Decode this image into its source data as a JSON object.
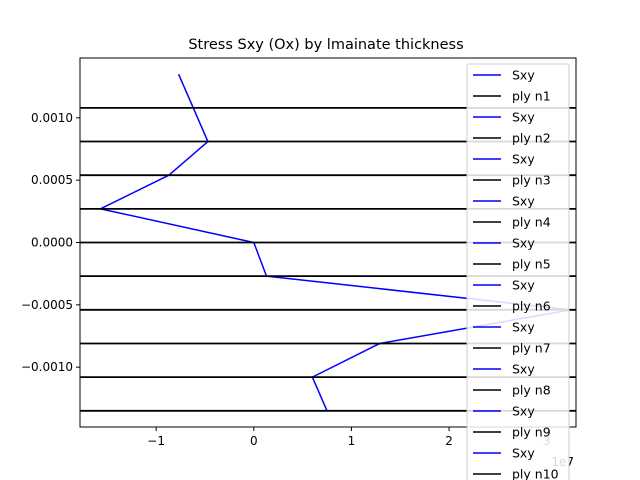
{
  "chart_data": {
    "type": "line",
    "title": "Stress Sxy (Ox) by lmainate thickness",
    "xlabel": "",
    "ylabel": "",
    "x_offset_text": "1e7",
    "x_ticks": [
      -1,
      0,
      1,
      2,
      3
    ],
    "x_tick_labels": [
      "−1",
      "0",
      "1",
      "2",
      "3"
    ],
    "y_ticks": [
      0.001,
      0.0005,
      0.0,
      -0.0005,
      -0.001
    ],
    "y_tick_labels": [
      "0.0010",
      "0.0005",
      "0.0000",
      "−0.0005",
      "−0.0010"
    ],
    "xlim": [
      -1.78,
      3.3
    ],
    "ylim": [
      -0.00148,
      0.00148
    ],
    "grid": false,
    "legend_position": "right",
    "series": [
      {
        "name": "Sxy",
        "color": "#0000ff",
        "x": [
          -0.77,
          -0.47
        ],
        "y": [
          0.00135,
          0.00081
        ]
      },
      {
        "name": "ply n1",
        "color": "#000000",
        "x": [
          -1.78,
          3.3
        ],
        "y": [
          0.00108,
          0.00108
        ]
      },
      {
        "name": "Sxy",
        "color": "#0000ff",
        "x": [
          -0.47,
          -0.87
        ],
        "y": [
          0.00081,
          0.00054
        ]
      },
      {
        "name": "ply n2",
        "color": "#000000",
        "x": [
          -1.78,
          3.3
        ],
        "y": [
          0.00081,
          0.00081
        ]
      },
      {
        "name": "Sxy",
        "color": "#0000ff",
        "x": [
          -0.87,
          -1.57
        ],
        "y": [
          0.00054,
          0.00027
        ]
      },
      {
        "name": "ply n3",
        "color": "#000000",
        "x": [
          -1.78,
          3.3
        ],
        "y": [
          0.00054,
          0.00054
        ]
      },
      {
        "name": "Sxy",
        "color": "#0000ff",
        "x": [
          -1.57,
          0.0
        ],
        "y": [
          0.00027,
          0.0
        ]
      },
      {
        "name": "ply n4",
        "color": "#000000",
        "x": [
          -1.78,
          3.3
        ],
        "y": [
          0.00027,
          0.00027
        ]
      },
      {
        "name": "Sxy",
        "color": "#0000ff",
        "x": [
          0.0,
          0.13
        ],
        "y": [
          0.0,
          -0.00027
        ]
      },
      {
        "name": "ply n5",
        "color": "#000000",
        "x": [
          -1.78,
          3.3
        ],
        "y": [
          0.0,
          0.0
        ]
      },
      {
        "name": "Sxy",
        "color": "#0000ff",
        "x": [
          0.13,
          3.25
        ],
        "y": [
          -0.00027,
          -0.00054
        ]
      },
      {
        "name": "ply n6",
        "color": "#000000",
        "x": [
          -1.78,
          3.3
        ],
        "y": [
          -0.00027,
          -0.00027
        ]
      },
      {
        "name": "Sxy",
        "color": "#0000ff",
        "x": [
          3.25,
          1.29
        ],
        "y": [
          -0.00054,
          -0.00081
        ]
      },
      {
        "name": "ply n7",
        "color": "#000000",
        "x": [
          -1.78,
          3.3
        ],
        "y": [
          -0.00054,
          -0.00054
        ]
      },
      {
        "name": "Sxy",
        "color": "#0000ff",
        "x": [
          1.29,
          0.6
        ],
        "y": [
          -0.00081,
          -0.00108
        ]
      },
      {
        "name": "ply n8",
        "color": "#000000",
        "x": [
          -1.78,
          3.3
        ],
        "y": [
          -0.00081,
          -0.00081
        ]
      },
      {
        "name": "Sxy",
        "color": "#0000ff",
        "x": [
          0.6,
          0.75
        ],
        "y": [
          -0.00108,
          -0.00135
        ]
      },
      {
        "name": "ply n9",
        "color": "#000000",
        "x": [
          -1.78,
          3.3
        ],
        "y": [
          -0.00108,
          -0.00108
        ]
      },
      {
        "name": "Sxy",
        "color": "#0000ff",
        "x": [],
        "y": []
      },
      {
        "name": "ply n10",
        "color": "#000000",
        "x": [
          -1.78,
          3.3
        ],
        "y": [
          -0.00135,
          -0.00135
        ]
      }
    ]
  }
}
